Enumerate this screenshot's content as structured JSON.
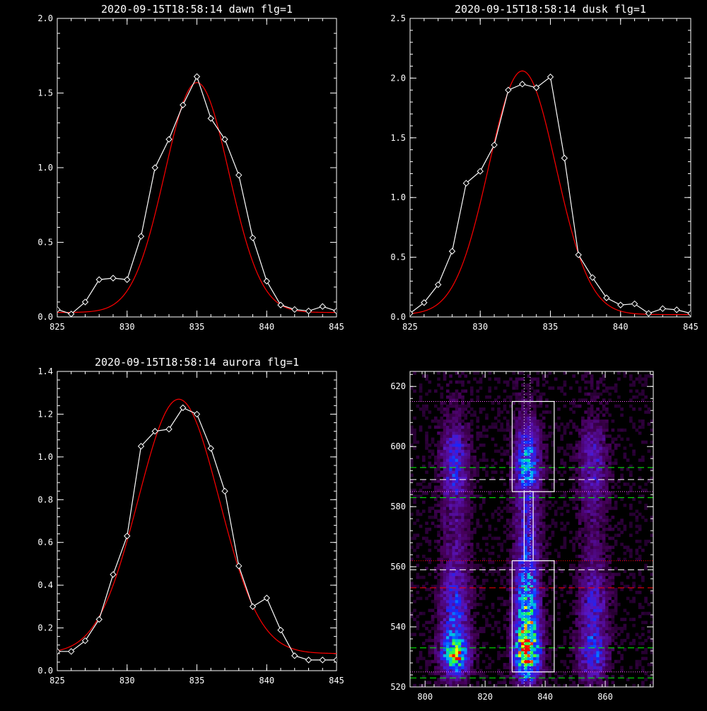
{
  "colors": {
    "background": "#000000",
    "axes": "#ffffff",
    "observed": "#ffffff",
    "fit": "#ff0000",
    "green_dash": "#00ff00",
    "red_dash": "#ff0000",
    "magenta_dot": "#ff66ff",
    "white_dash": "#ffffff"
  },
  "chart_data": [
    {
      "id": "dawn",
      "type": "line",
      "title": "2020-09-15T18:58:14 dawn flg=1",
      "xlabel": "",
      "ylabel": "",
      "xlim": [
        825,
        845
      ],
      "ylim": [
        0.0,
        2.0
      ],
      "xticks": [
        825,
        830,
        835,
        840,
        845
      ],
      "yticks": [
        0.0,
        0.5,
        1.0,
        1.5,
        2.0
      ],
      "ytick_labels": [
        "0.0",
        "0.5",
        "1.0",
        "1.5",
        "2.0"
      ],
      "grid": false,
      "series": [
        {
          "role": "observed",
          "marker": "diamond",
          "x": [
            825,
            826,
            827,
            828,
            829,
            830,
            831,
            832,
            833,
            834,
            835,
            836,
            837,
            838,
            839,
            840,
            841,
            842,
            843,
            844,
            845
          ],
          "y": [
            0.05,
            0.02,
            0.1,
            0.25,
            0.26,
            0.25,
            0.54,
            1.0,
            1.19,
            1.42,
            1.61,
            1.33,
            1.19,
            0.95,
            0.53,
            0.24,
            0.08,
            0.05,
            0.04,
            0.07,
            0.04
          ]
        },
        {
          "role": "fit",
          "shape": "gaussian",
          "amplitude": 1.54,
          "center": 835.0,
          "sigma": 2.3,
          "offset": 0.03
        }
      ]
    },
    {
      "id": "dusk",
      "type": "line",
      "title": "2020-09-15T18:58:14 dusk flg=1",
      "xlabel": "",
      "ylabel": "",
      "xlim": [
        825,
        845
      ],
      "ylim": [
        0.0,
        2.5
      ],
      "xticks": [
        825,
        830,
        835,
        840,
        845
      ],
      "yticks": [
        0.0,
        0.5,
        1.0,
        1.5,
        2.0,
        2.5
      ],
      "ytick_labels": [
        "0.0",
        "0.5",
        "1.0",
        "1.5",
        "2.0",
        "2.5"
      ],
      "grid": false,
      "series": [
        {
          "role": "observed",
          "marker": "diamond",
          "x": [
            825,
            826,
            827,
            828,
            829,
            830,
            831,
            832,
            833,
            834,
            835,
            836,
            837,
            838,
            839,
            840,
            841,
            842,
            843,
            844,
            845
          ],
          "y": [
            0.03,
            0.12,
            0.27,
            0.55,
            1.12,
            1.22,
            1.44,
            1.9,
            1.95,
            1.92,
            2.01,
            1.33,
            0.52,
            0.33,
            0.16,
            0.1,
            0.11,
            0.03,
            0.07,
            0.06,
            0.03
          ]
        },
        {
          "role": "fit",
          "shape": "gaussian",
          "amplitude": 2.04,
          "center": 833.0,
          "sigma": 2.4,
          "offset": 0.02
        }
      ]
    },
    {
      "id": "aurora",
      "type": "line",
      "title": "2020-09-15T18:58:14 aurora flg=1",
      "xlabel": "",
      "ylabel": "",
      "xlim": [
        825,
        845
      ],
      "ylim": [
        0.0,
        1.4
      ],
      "xticks": [
        825,
        830,
        835,
        840,
        845
      ],
      "yticks": [
        0.0,
        0.2,
        0.4,
        0.6,
        0.8,
        1.0,
        1.2,
        1.4
      ],
      "ytick_labels": [
        "0.0",
        "0.2",
        "0.4",
        "0.6",
        "0.8",
        "1.0",
        "1.2",
        "1.4"
      ],
      "grid": false,
      "series": [
        {
          "role": "observed",
          "marker": "diamond",
          "x": [
            825,
            826,
            827,
            828,
            829,
            830,
            831,
            832,
            833,
            834,
            835,
            836,
            837,
            838,
            839,
            840,
            841,
            842,
            843,
            844,
            845
          ],
          "y": [
            0.09,
            0.09,
            0.14,
            0.24,
            0.45,
            0.63,
            1.05,
            1.12,
            1.13,
            1.23,
            1.2,
            1.04,
            0.84,
            0.49,
            0.3,
            0.34,
            0.19,
            0.07,
            0.05,
            0.05,
            0.05
          ]
        },
        {
          "role": "fit",
          "shape": "gaussian",
          "amplitude": 1.19,
          "center": 833.7,
          "sigma": 2.9,
          "offset": 0.08
        }
      ]
    },
    {
      "id": "image",
      "type": "heatmap",
      "title": "",
      "xlabel": "",
      "ylabel": "",
      "xlim": [
        795,
        876
      ],
      "ylim": [
        520,
        625
      ],
      "xticks": [
        800,
        820,
        840,
        860
      ],
      "yticks": [
        520,
        540,
        560,
        580,
        600,
        620
      ],
      "grid": false,
      "colormap": "rainbow",
      "bands": [
        {
          "name": "left",
          "center_x": 810,
          "width": 3.2,
          "profile": [
            [
              520,
              0.05
            ],
            [
              526,
              0.4
            ],
            [
              530,
              0.85
            ],
            [
              535,
              0.55
            ],
            [
              540,
              0.4
            ],
            [
              550,
              0.35
            ],
            [
              560,
              0.2
            ],
            [
              570,
              0.15
            ],
            [
              580,
              0.18
            ],
            [
              590,
              0.32
            ],
            [
              600,
              0.3
            ],
            [
              610,
              0.08
            ],
            [
              625,
              0.02
            ]
          ]
        },
        {
          "name": "center",
          "center_x": 834,
          "width": 2.8,
          "profile": [
            [
              520,
              0.1
            ],
            [
              526,
              0.7
            ],
            [
              532,
              1.0
            ],
            [
              540,
              0.8
            ],
            [
              550,
              0.55
            ],
            [
              560,
              0.45
            ],
            [
              565,
              0.35
            ],
            [
              575,
              0.28
            ],
            [
              585,
              0.3
            ],
            [
              592,
              0.55
            ],
            [
              598,
              0.45
            ],
            [
              605,
              0.3
            ],
            [
              612,
              0.1
            ],
            [
              625,
              0.02
            ]
          ]
        },
        {
          "name": "right",
          "center_x": 856,
          "width": 3.2,
          "profile": [
            [
              520,
              0.05
            ],
            [
              528,
              0.35
            ],
            [
              532,
              0.4
            ],
            [
              540,
              0.3
            ],
            [
              550,
              0.3
            ],
            [
              560,
              0.15
            ],
            [
              570,
              0.1
            ],
            [
              580,
              0.15
            ],
            [
              590,
              0.25
            ],
            [
              600,
              0.25
            ],
            [
              610,
              0.06
            ],
            [
              625,
              0.02
            ]
          ]
        }
      ],
      "boxes": [
        {
          "x0": 829,
          "x1": 843,
          "y0": 585,
          "y1": 615
        },
        {
          "x0": 829,
          "x1": 843,
          "y0": 525,
          "y1": 562
        },
        {
          "x0": 833,
          "x1": 836,
          "y0": 562,
          "y1": 585
        }
      ],
      "hlines": [
        {
          "y": 615,
          "style": "dotted",
          "color": "magenta_dot"
        },
        {
          "y": 593,
          "style": "dashed",
          "color": "green_dash"
        },
        {
          "y": 589,
          "style": "dashed",
          "color": "white_dash"
        },
        {
          "y": 585,
          "style": "dotted",
          "color": "magenta_dot"
        },
        {
          "y": 583,
          "style": "dashed",
          "color": "green_dash"
        },
        {
          "y": 562,
          "style": "dotted",
          "color": "red_dash"
        },
        {
          "y": 559,
          "style": "dashed",
          "color": "white_dash"
        },
        {
          "y": 553,
          "style": "dashed",
          "color": "red_dash"
        },
        {
          "y": 533,
          "style": "dashed",
          "color": "green_dash"
        },
        {
          "y": 525,
          "style": "dotted",
          "color": "magenta_dot"
        },
        {
          "y": 523,
          "style": "dashed",
          "color": "green_dash"
        }
      ],
      "vlines": [
        {
          "x": 833,
          "style": "dotted",
          "color": "white_dash"
        },
        {
          "x": 835,
          "style": "dotted",
          "color": "white_dash"
        }
      ]
    }
  ]
}
